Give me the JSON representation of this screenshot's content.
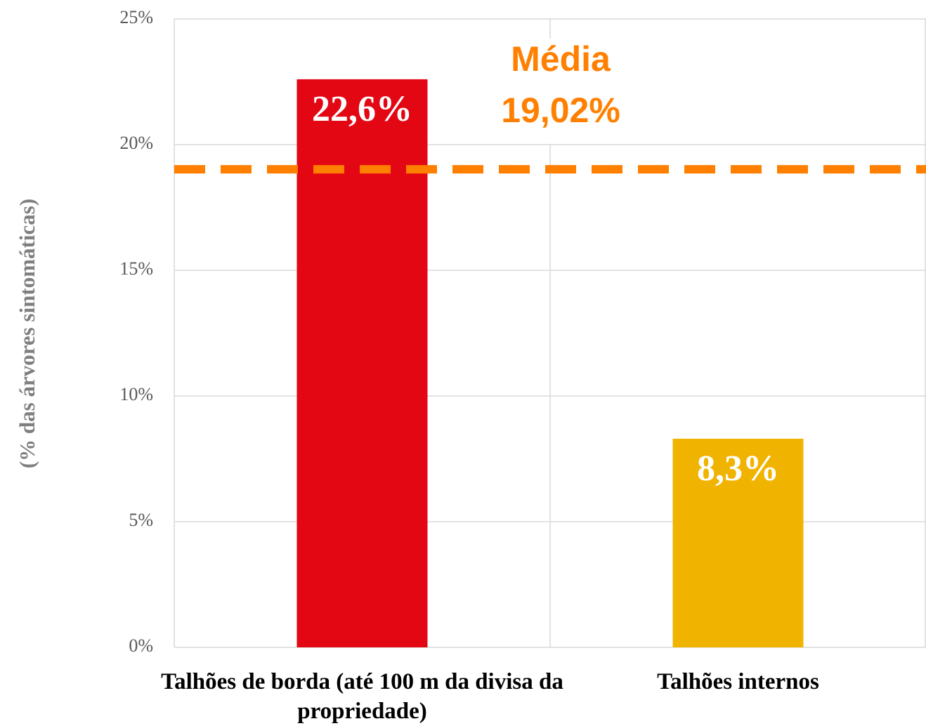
{
  "chart_data": {
    "type": "bar",
    "y_label": "(% das árvores sintomáticas)",
    "categories": [
      "Talhões de borda (até 100 m da divisa da propriedade)",
      "Talhões internos"
    ],
    "values": [
      22.6,
      8.3
    ],
    "value_labels": [
      "22,6%",
      "8,3%"
    ],
    "colors": [
      "#e30613",
      "#f0b400"
    ],
    "ylim": [
      0,
      25
    ],
    "yticks": [
      {
        "value": 0,
        "label": "0%"
      },
      {
        "value": 5,
        "label": "5%"
      },
      {
        "value": 10,
        "label": "10%"
      },
      {
        "value": 15,
        "label": "15%"
      },
      {
        "value": 20,
        "label": "20%"
      },
      {
        "value": 25,
        "label": "25%"
      }
    ],
    "grid": true,
    "average": {
      "title": "Média",
      "value": 19.02,
      "label": "19,02%",
      "color": "#ff8000"
    }
  }
}
